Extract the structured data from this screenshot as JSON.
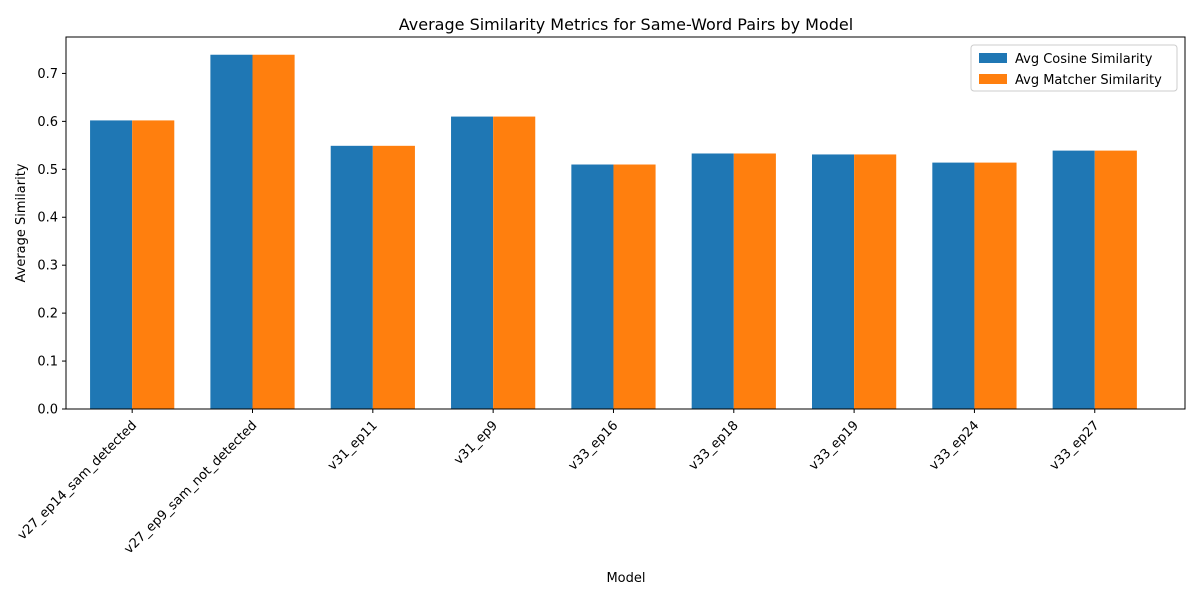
{
  "chart_data": {
    "type": "bar",
    "title": "Average Similarity Metrics for Same-Word Pairs by Model",
    "xlabel": "Model",
    "ylabel": "Average Similarity",
    "categories": [
      "v27_ep14_sam_detected",
      "v27_ep9_sam_not_detected",
      "v31_ep11",
      "v31_ep9",
      "v33_ep16",
      "v33_ep18",
      "v33_ep19",
      "v33_ep24",
      "v33_ep27"
    ],
    "series": [
      {
        "name": "Avg Cosine Similarity",
        "color": "#1f77b4",
        "values": [
          0.602,
          0.739,
          0.549,
          0.61,
          0.51,
          0.533,
          0.531,
          0.514,
          0.539
        ]
      },
      {
        "name": "Avg Matcher Similarity",
        "color": "#ff7f0e",
        "values": [
          0.602,
          0.739,
          0.549,
          0.61,
          0.51,
          0.533,
          0.531,
          0.514,
          0.539
        ]
      }
    ],
    "ylim": [
      0,
      0.776
    ],
    "yticks": [
      "0.0",
      "0.1",
      "0.2",
      "0.3",
      "0.4",
      "0.5",
      "0.6",
      "0.7"
    ],
    "grid": false,
    "legend_position": "top-right"
  }
}
